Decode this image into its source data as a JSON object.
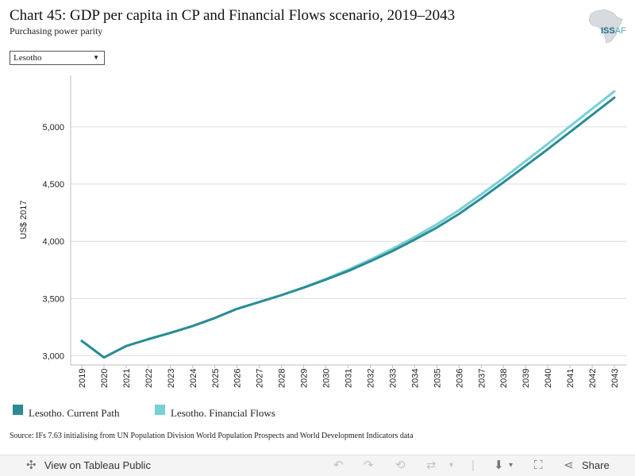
{
  "header": {
    "title": "Chart 45: GDP per capita in CP and Financial Flows scenario, 2019–2043",
    "subtitle": "Purchasing power parity",
    "logo_text_main": "ISS",
    "logo_text_accent": "AF"
  },
  "filter": {
    "selected": "Lesotho"
  },
  "chart_data": {
    "type": "line",
    "ylabel": "US$ 2017",
    "xlabel": "",
    "ylim": [
      2920,
      5450
    ],
    "yticks": [
      3000,
      3500,
      4000,
      4500,
      5000
    ],
    "ytick_labels": [
      "3,000",
      "3,500",
      "4,000",
      "4,500",
      "5,000"
    ],
    "grid": true,
    "x": [
      "2019",
      "2020",
      "2021",
      "2022",
      "2023",
      "2024",
      "2025",
      "2026",
      "2027",
      "2028",
      "2029",
      "2030",
      "2031",
      "2032",
      "2033",
      "2034",
      "2035",
      "2036",
      "2037",
      "2038",
      "2039",
      "2040",
      "2041",
      "2042",
      "2043"
    ],
    "series": [
      {
        "name": "Lesotho. Current Path",
        "color": "#2a8c93",
        "values": [
          3130,
          2985,
          3085,
          3145,
          3200,
          3260,
          3330,
          3410,
          3470,
          3530,
          3595,
          3665,
          3740,
          3825,
          3915,
          4015,
          4120,
          4240,
          4375,
          4515,
          4660,
          4805,
          4955,
          5105,
          5255
        ]
      },
      {
        "name": "Lesotho. Financial Flows",
        "color": "#79cfd6",
        "values": [
          3130,
          2985,
          3085,
          3145,
          3200,
          3260,
          3330,
          3410,
          3470,
          3530,
          3598,
          3672,
          3752,
          3840,
          3935,
          4038,
          4148,
          4272,
          4410,
          4552,
          4702,
          4852,
          5005,
          5158,
          5310
        ]
      }
    ],
    "legend_position": "bottom-left"
  },
  "source": "Source: IFs 7.63 initialising from UN Population Division World Population Prospects and World Development Indicators data",
  "toolbar": {
    "view_label": "View on Tableau Public",
    "share_label": "Share"
  }
}
